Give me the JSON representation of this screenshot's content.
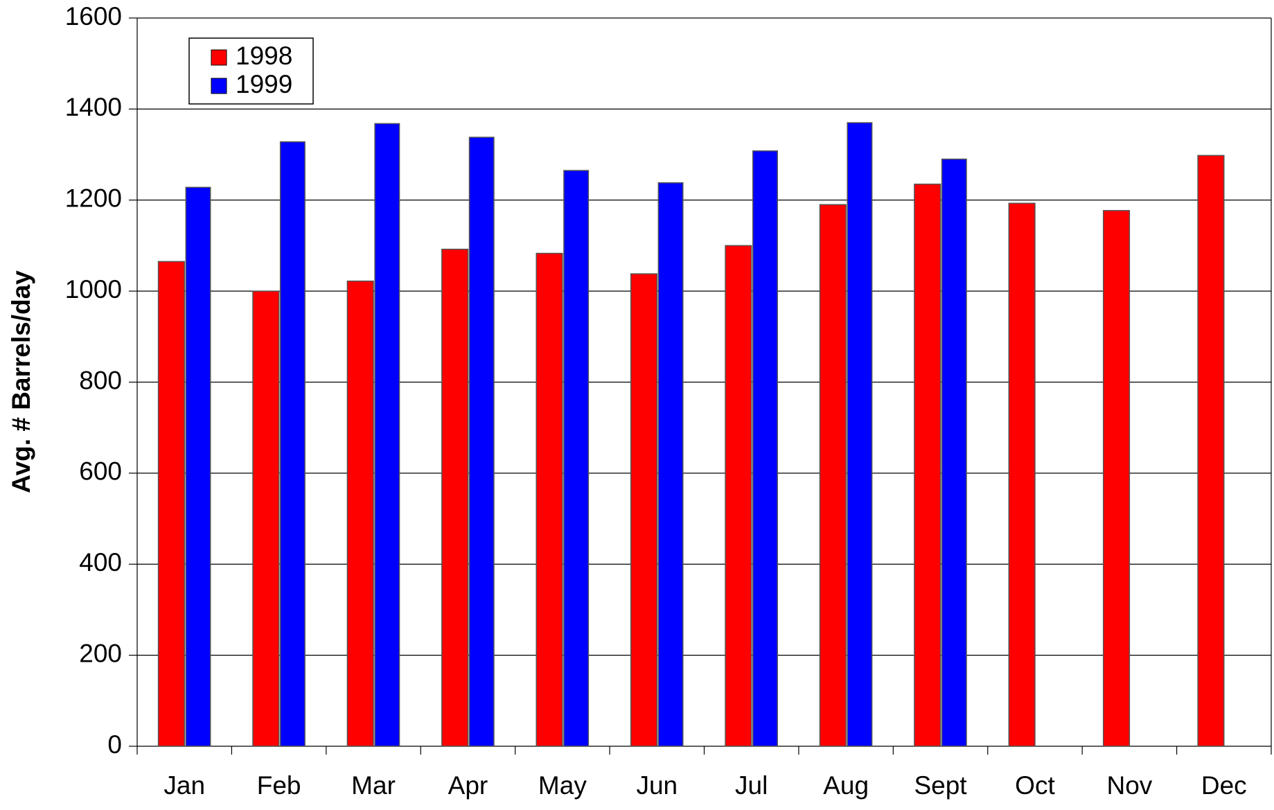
{
  "chart_data": {
    "type": "bar",
    "y_label": "Avg. # Barrels/day",
    "categories": [
      "Jan",
      "Feb",
      "Mar",
      "Apr",
      "May",
      "Jun",
      "Jul",
      "Aug",
      "Sept",
      "Oct",
      "Nov",
      "Dec"
    ],
    "series": [
      {
        "name": "1998",
        "color": "#ff0000",
        "values": [
          1065,
          1000,
          1022,
          1092,
          1083,
          1038,
          1100,
          1190,
          1235,
          1193,
          1177,
          1298
        ]
      },
      {
        "name": "1999",
        "color": "#0000ff",
        "values": [
          1228,
          1328,
          1368,
          1338,
          1265,
          1238,
          1308,
          1370,
          1290,
          null,
          null,
          null
        ]
      }
    ],
    "ylim": [
      0,
      1600
    ],
    "yticks": [
      0,
      200,
      400,
      600,
      800,
      1000,
      1200,
      1400,
      1600
    ],
    "grid": true,
    "legend": "upper left"
  }
}
